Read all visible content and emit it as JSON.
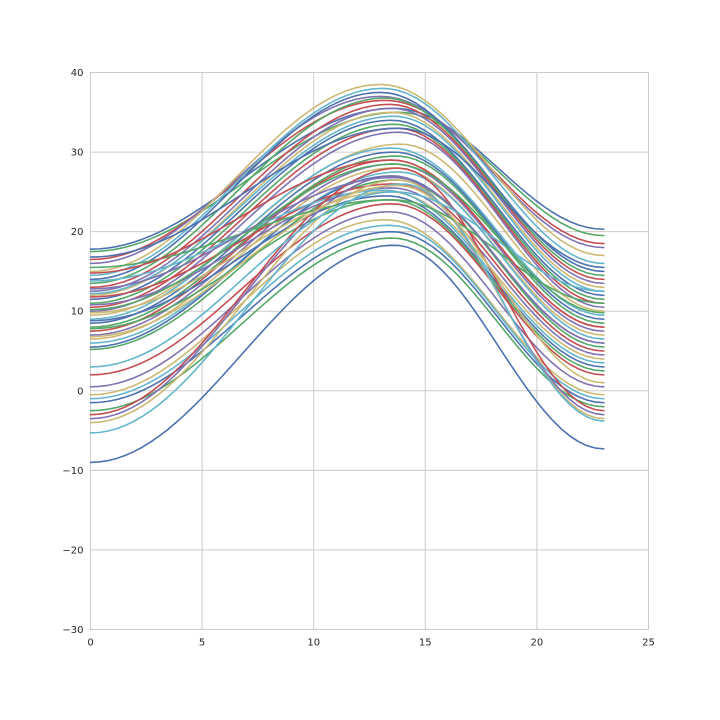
{
  "chart_data": {
    "type": "line",
    "title": "",
    "xlabel": "",
    "ylabel": "",
    "xlim": [
      0,
      25
    ],
    "ylim": [
      -30,
      40
    ],
    "xticks": [
      0,
      5,
      10,
      15,
      20,
      25
    ],
    "yticks": [
      -30,
      -20,
      -10,
      0,
      10,
      20,
      30,
      40
    ],
    "x_tick_labels": [
      "0",
      "5",
      "10",
      "15",
      "20",
      "25"
    ],
    "y_tick_labels": [
      "−30",
      "−20",
      "−10",
      "0",
      "10",
      "20",
      "30",
      "40"
    ],
    "grid": true,
    "legend": false,
    "palette": [
      "#4c72b0",
      "#55a868",
      "#c44e52",
      "#8172b2",
      "#ccb974",
      "#64b5cd"
    ],
    "x_range": [
      0,
      23
    ],
    "series": [
      {
        "start": 17.8,
        "peak": 35.5,
        "peak_x": 13.6,
        "end": 20.3
      },
      {
        "start": 17.5,
        "peak": 35.0,
        "peak_x": 13.8,
        "end": 19.5
      },
      {
        "start": 16.5,
        "peak": 36.5,
        "peak_x": 13.2,
        "end": 18.5
      },
      {
        "start": 16.0,
        "peak": 37.0,
        "peak_x": 13.0,
        "end": 18.0
      },
      {
        "start": 15.0,
        "peak": 38.5,
        "peak_x": 13.0,
        "end": 17.0
      },
      {
        "start": 14.5,
        "peak": 38.0,
        "peak_x": 13.1,
        "end": 16.0
      },
      {
        "start": 14.0,
        "peak": 37.5,
        "peak_x": 13.0,
        "end": 15.0
      },
      {
        "start": 13.5,
        "peak": 36.8,
        "peak_x": 13.2,
        "end": 14.5
      },
      {
        "start": 13.0,
        "peak": 36.0,
        "peak_x": 13.4,
        "end": 14.0
      },
      {
        "start": 12.5,
        "peak": 35.5,
        "peak_x": 13.5,
        "end": 13.5
      },
      {
        "start": 12.0,
        "peak": 35.0,
        "peak_x": 13.5,
        "end": 13.0
      },
      {
        "start": 12.2,
        "peak": 34.5,
        "peak_x": 13.6,
        "end": 12.5
      },
      {
        "start": 11.5,
        "peak": 34.0,
        "peak_x": 13.5,
        "end": 12.0
      },
      {
        "start": 11.0,
        "peak": 33.5,
        "peak_x": 13.6,
        "end": 11.5
      },
      {
        "start": 10.5,
        "peak": 33.0,
        "peak_x": 13.7,
        "end": 11.0
      },
      {
        "start": 10.0,
        "peak": 32.5,
        "peak_x": 13.8,
        "end": 10.5
      },
      {
        "start": 9.5,
        "peak": 31.0,
        "peak_x": 13.9,
        "end": 10.0
      },
      {
        "start": 9.0,
        "peak": 30.5,
        "peak_x": 13.5,
        "end": 9.5
      },
      {
        "start": 8.5,
        "peak": 30.0,
        "peak_x": 13.6,
        "end": 9.0
      },
      {
        "start": 8.0,
        "peak": 29.5,
        "peak_x": 13.7,
        "end": 8.5
      },
      {
        "start": 7.5,
        "peak": 29.0,
        "peak_x": 13.5,
        "end": 8.0
      },
      {
        "start": 7.0,
        "peak": 28.5,
        "peak_x": 13.6,
        "end": 7.5
      },
      {
        "start": 6.5,
        "peak": 28.0,
        "peak_x": 13.6,
        "end": 7.0
      },
      {
        "start": 6.0,
        "peak": 27.5,
        "peak_x": 13.8,
        "end": 6.5
      },
      {
        "start": 5.5,
        "peak": 27.0,
        "peak_x": 13.5,
        "end": 6.0
      },
      {
        "start": 5.2,
        "peak": 26.5,
        "peak_x": 13.7,
        "end": 5.5
      },
      {
        "start": 11.8,
        "peak": 26.0,
        "peak_x": 13.6,
        "end": 5.0
      },
      {
        "start": 10.8,
        "peak": 25.5,
        "peak_x": 13.5,
        "end": 4.5
      },
      {
        "start": 9.8,
        "peak": 25.0,
        "peak_x": 13.4,
        "end": 4.0
      },
      {
        "start": 13.8,
        "peak": 25.2,
        "peak_x": 13.2,
        "end": 3.5
      },
      {
        "start": 8.8,
        "peak": 24.5,
        "peak_x": 13.3,
        "end": 3.0
      },
      {
        "start": 7.8,
        "peak": 24.0,
        "peak_x": 13.4,
        "end": 2.5
      },
      {
        "start": 2.0,
        "peak": 23.5,
        "peak_x": 13.5,
        "end": 2.0
      },
      {
        "start": 0.5,
        "peak": 22.5,
        "peak_x": 13.4,
        "end": 0.5
      },
      {
        "start": -0.5,
        "peak": 21.5,
        "peak_x": 13.2,
        "end": -0.5
      },
      {
        "start": -1.0,
        "peak": 20.8,
        "peak_x": 13.4,
        "end": -1.0
      },
      {
        "start": -1.5,
        "peak": 20.0,
        "peak_x": 13.5,
        "end": -1.5
      },
      {
        "start": -2.5,
        "peak": 19.2,
        "peak_x": 13.5,
        "end": -2.0
      },
      {
        "start": -3.0,
        "peak": 28.0,
        "peak_x": 13.8,
        "end": -2.5
      },
      {
        "start": -3.5,
        "peak": 27.0,
        "peak_x": 13.6,
        "end": -3.0
      },
      {
        "start": -4.0,
        "peak": 26.5,
        "peak_x": 13.8,
        "end": -3.5
      },
      {
        "start": -5.3,
        "peak": 26.0,
        "peak_x": 14.0,
        "end": -3.8
      },
      {
        "start": -9.0,
        "peak": 18.3,
        "peak_x": 13.6,
        "end": -7.3
      },
      {
        "start": 15.5,
        "peak": 24.0,
        "peak_x": 13.5,
        "end": 11.0
      },
      {
        "start": 14.8,
        "peak": 29.0,
        "peak_x": 13.5,
        "end": 8.0
      },
      {
        "start": 12.8,
        "peak": 26.8,
        "peak_x": 13.6,
        "end": 6.0
      },
      {
        "start": 6.8,
        "peak": 25.8,
        "peak_x": 13.8,
        "end": 1.0
      },
      {
        "start": 3.0,
        "peak": 25.0,
        "peak_x": 13.6,
        "end": 12.5
      },
      {
        "start": 16.8,
        "peak": 33.0,
        "peak_x": 13.8,
        "end": 15.5
      },
      {
        "start": 10.2,
        "peak": 28.5,
        "peak_x": 13.6,
        "end": 9.8
      }
    ]
  }
}
